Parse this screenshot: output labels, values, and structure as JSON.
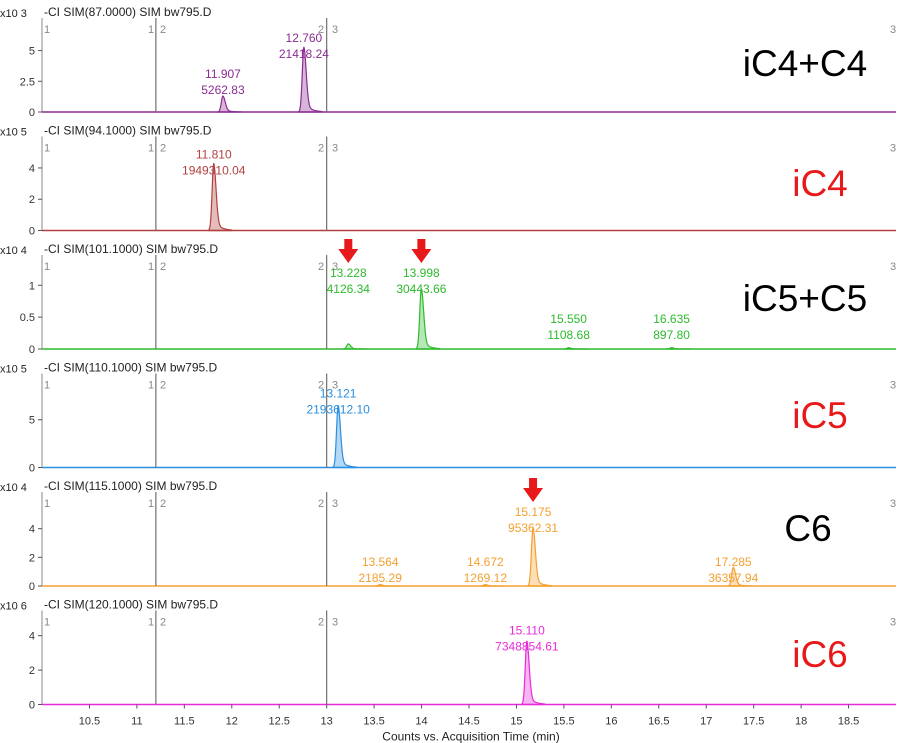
{
  "chart_data": [
    {
      "type": "line",
      "header": "-CI SIM(87.0000) SIM bw795.D",
      "scale": "x10 3",
      "annotation": "iC4+C4",
      "annotation_color": "#000000",
      "color": "#8b2c93",
      "ylim": [
        0,
        7
      ],
      "yticks": [
        0,
        2.5,
        5
      ],
      "ytick_labels": [
        "0",
        "2.5",
        "5"
      ],
      "segment_markers": [
        "1",
        "1",
        "2",
        "2",
        "3",
        "3"
      ],
      "peaks": [
        {
          "x": 11.907,
          "height": 1.3,
          "labels": [
            "11.907",
            "5262.83"
          ],
          "arrow": false
        },
        {
          "x": 12.76,
          "height": 5.3,
          "labels": [
            "12.760",
            "21418.24"
          ],
          "arrow": false
        }
      ]
    },
    {
      "type": "line",
      "header": "-CI SIM(94.1000) SIM bw795.D",
      "scale": "x10 5",
      "annotation": "iC4",
      "annotation_color": "#e8191a",
      "color": "#b34040",
      "ylim": [
        0,
        5.5
      ],
      "yticks": [
        0,
        2,
        4
      ],
      "ytick_labels": [
        "0",
        "2",
        "4"
      ],
      "segment_markers": [
        "1",
        "1",
        "2",
        "2",
        "3",
        "3"
      ],
      "peaks": [
        {
          "x": 11.81,
          "height": 4.3,
          "labels": [
            "11.810",
            "1949310.04"
          ],
          "arrow": false
        }
      ]
    },
    {
      "type": "line",
      "header": "-CI SIM(101.1000) SIM bw795.D",
      "scale": "x10 4",
      "annotation": "iC5+C5",
      "annotation_color": "#000000",
      "color": "#2dba2d",
      "ylim": [
        0,
        1.35
      ],
      "yticks": [
        0,
        0.5,
        1
      ],
      "ytick_labels": [
        "0",
        "0.5",
        "1"
      ],
      "segment_markers": [
        "1",
        "1",
        "2",
        "2",
        "3",
        "3"
      ],
      "peaks": [
        {
          "x": 13.228,
          "height": 0.08,
          "labels": [
            "13.228",
            "4126.34"
          ],
          "arrow": true
        },
        {
          "x": 13.998,
          "height": 0.95,
          "labels": [
            "13.998",
            "30443.66"
          ],
          "arrow": true
        },
        {
          "x": 15.55,
          "height": 0.02,
          "labels": [
            "15.550",
            "1108.68"
          ],
          "arrow": false
        },
        {
          "x": 16.635,
          "height": 0.02,
          "labels": [
            "16.635",
            "897.80"
          ],
          "arrow": false
        }
      ]
    },
    {
      "type": "line",
      "header": "-CI SIM(110.1000) SIM bw795.D",
      "scale": "x10 5",
      "annotation": "iC5",
      "annotation_color": "#e8191a",
      "color": "#2a8fe0",
      "ylim": [
        0,
        9
      ],
      "yticks": [
        0,
        5
      ],
      "ytick_labels": [
        "0",
        "5"
      ],
      "segment_markers": [
        "1",
        "1",
        "2",
        "2",
        "3",
        "3"
      ],
      "peaks": [
        {
          "x": 13.121,
          "height": 6.5,
          "labels": [
            "13.121",
            "2193612.10"
          ],
          "arrow": false
        }
      ]
    },
    {
      "type": "line",
      "header": "-CI SIM(115.1000) SIM bw795.D",
      "scale": "x10 4",
      "annotation": "C6",
      "annotation_color": "#000000",
      "color": "#f5a030",
      "ylim": [
        0,
        6
      ],
      "yticks": [
        0,
        2,
        4
      ],
      "ytick_labels": [
        "0",
        "2",
        "4"
      ],
      "segment_markers": [
        "1",
        "1",
        "2",
        "2",
        "3",
        "3"
      ],
      "peaks": [
        {
          "x": 13.564,
          "height": 0.1,
          "labels": [
            "13.564",
            "2185.29"
          ],
          "arrow": false
        },
        {
          "x": 14.672,
          "height": 0.1,
          "labels": [
            "14.672",
            "1269.12"
          ],
          "arrow": false
        },
        {
          "x": 15.175,
          "height": 4.1,
          "labels": [
            "15.175",
            "95362.31"
          ],
          "arrow": true
        },
        {
          "x": 17.285,
          "height": 1.3,
          "labels": [
            "17.285",
            "36357.94"
          ],
          "arrow": false
        }
      ]
    },
    {
      "type": "line",
      "header": "-CI SIM(120.1000) SIM bw795.D",
      "scale": "x10 6",
      "annotation": "iC6",
      "annotation_color": "#e8191a",
      "color": "#e82ad8",
      "ylim": [
        0,
        5
      ],
      "yticks": [
        0,
        2,
        4
      ],
      "ytick_labels": [
        "0",
        "2",
        "4"
      ],
      "segment_markers": [
        "1",
        "1",
        "2",
        "2",
        "3",
        "3"
      ],
      "peaks": [
        {
          "x": 15.11,
          "height": 3.7,
          "labels": [
            "15.110",
            "7348854.61"
          ],
          "arrow": false
        }
      ]
    }
  ],
  "x_axis": {
    "label": "Counts vs. Acquisition Time (min)",
    "range": [
      10.0,
      19.0
    ],
    "ticks": [
      10.5,
      11,
      11.5,
      12,
      12.5,
      13,
      13.5,
      14,
      14.5,
      15,
      15.5,
      16,
      16.5,
      17,
      17.5,
      18,
      18.5
    ],
    "tick_labels": [
      "10.5",
      "11",
      "11.5",
      "12",
      "12.5",
      "13",
      "13.5",
      "14",
      "14.5",
      "15",
      "15.5",
      "16",
      "16.5",
      "17",
      "17.5",
      "18",
      "18.5"
    ],
    "segment_lines": [
      11.2,
      13.0
    ]
  }
}
